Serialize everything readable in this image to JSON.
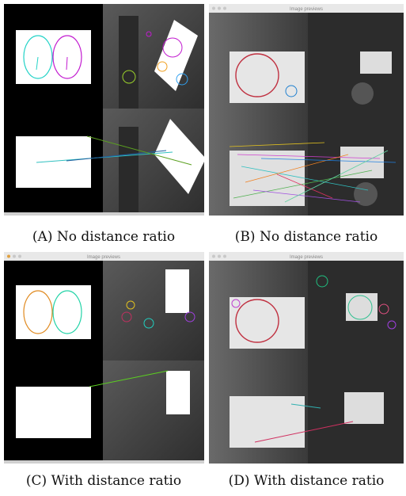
{
  "panels": [
    {
      "label": "(A)",
      "caption": "No distance ratio"
    },
    {
      "label": "(B)",
      "caption": "No distance ratio",
      "window_title": "Image previews"
    },
    {
      "label": "(C)",
      "caption": "With distance ratio",
      "window_title": "Image previews"
    },
    {
      "label": "(D)",
      "caption": "With distance ratio",
      "window_title": "Image previews"
    }
  ]
}
